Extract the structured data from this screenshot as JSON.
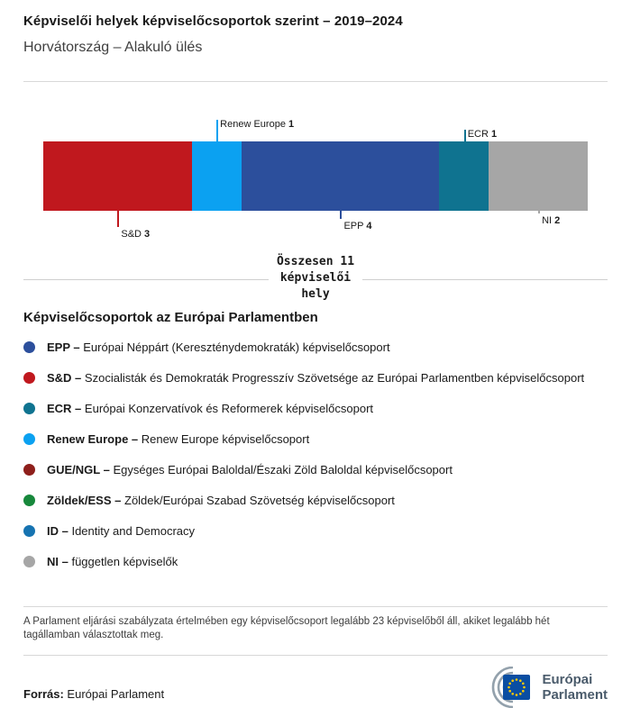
{
  "header": {
    "title": "Képviselői helyek képviselőcsoportok szerint – 2019–2024",
    "subtitle": "Horvátország – Alakuló ülés"
  },
  "chart_data": {
    "type": "bar",
    "subtype": "stacked-horizontal-seat-bar",
    "title": "Képviselői helyek képviselőcsoportok szerint – 2019–2024",
    "subtitle": "Horvátország – Alakuló ülés",
    "total": 11,
    "total_label": "Összesen 11 képviselői hely",
    "series": [
      {
        "name": "S&D",
        "value": 3,
        "color": "#c0181e",
        "side": "below",
        "line_len": 18
      },
      {
        "name": "Renew Europe",
        "value": 1,
        "color": "#0ba1f1",
        "side": "above",
        "line_len": 24
      },
      {
        "name": "EPP",
        "value": 4,
        "color": "#2c4f9c",
        "side": "below",
        "line_len": 9
      },
      {
        "name": "ECR",
        "value": 1,
        "color": "#0f7390",
        "side": "above",
        "line_len": 13
      },
      {
        "name": "NI",
        "value": 2,
        "color": "#a6a6a6",
        "side": "below",
        "line_len": 3
      }
    ]
  },
  "legend": {
    "heading": "Képviselőcsoportok az Európai Parlamentben",
    "items": [
      {
        "abbr": "EPP –",
        "desc": "Európai Néppárt (Kereszténydemokraták) képviselőcsoport",
        "color": "#2c4f9c"
      },
      {
        "abbr": "S&D –",
        "desc": "Szocialisták és Demokraták Progresszív Szövetsége az Európai Parlamentben képviselőcsoport",
        "color": "#c0181e"
      },
      {
        "abbr": "ECR –",
        "desc": "Európai Konzervatívok és Reformerek képviselőcsoport",
        "color": "#0f7390"
      },
      {
        "abbr": "Renew Europe –",
        "desc": "Renew Europe képviselőcsoport",
        "color": "#0ba1f1"
      },
      {
        "abbr": "GUE/NGL –",
        "desc": "Egységes Európai Baloldal/Északi Zöld Baloldal képviselőcsoport",
        "color": "#8e1f1b"
      },
      {
        "abbr": "Zöldek/ESS –",
        "desc": "Zöldek/Európai Szabad Szövetség képviselőcsoport",
        "color": "#17883b"
      },
      {
        "abbr": "ID –",
        "desc": "Identity and Democracy",
        "color": "#1673b1"
      },
      {
        "abbr": "NI –",
        "desc": "független képviselők",
        "color": "#a6a6a6"
      }
    ]
  },
  "footnote": "A Parlament eljárási szabályzata értelmében egy képviselőcsoport legalább 23 képviselőből áll, akiket legalább hét tagállamban választottak meg.",
  "source": {
    "label": "Forrás:",
    "value": "Európai Parlament"
  },
  "logo": {
    "line1": "Európai",
    "line2": "Parlament"
  }
}
